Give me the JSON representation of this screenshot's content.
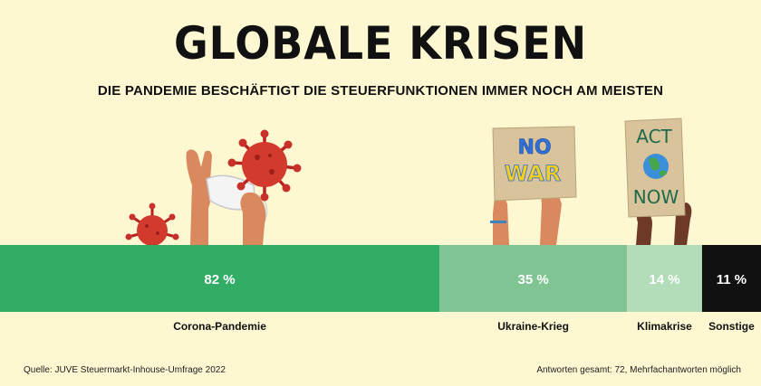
{
  "title": "GLOBALE KRISEN",
  "subtitle": "DIE PANDEMIE BESCHÄFTIGT DIE STEUERFUNKTIONEN IMMER NOCH AM MEISTEN",
  "signs": {
    "no_war_line1": "NO",
    "no_war_line2": "WAR",
    "act_now_line1": "ACT",
    "act_now_line2": "NOW"
  },
  "colors": {
    "background": "#fdf7d2",
    "corona": "#33ad66",
    "ukraine": "#7fc492",
    "klima": "#b3dcb9",
    "sonstige": "#111111"
  },
  "chart_data": {
    "type": "bar",
    "orientation": "horizontal-stacked-proportional",
    "categories": [
      "Corona-Pandemie",
      "Ukraine-Krieg",
      "Klimakrise",
      "Sonstige"
    ],
    "values": [
      82,
      35,
      14,
      11
    ],
    "value_labels": [
      "82 %",
      "35 %",
      "14 %",
      "11 %"
    ],
    "unit": "%"
  },
  "footer": {
    "source": "Quelle: JUVE Steuermarkt-Inhouse-Umfrage 2022",
    "note": "Antworten gesamt: 72, Mehrfachantworten möglich"
  }
}
